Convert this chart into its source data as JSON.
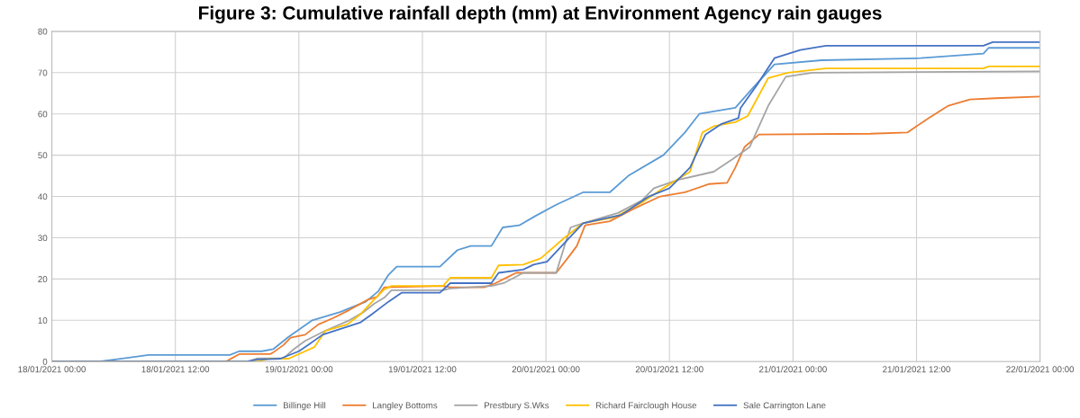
{
  "chart_data": {
    "type": "line",
    "title": "Figure 3: Cumulative rainfall depth (mm) at Environment Agency rain gauges",
    "xlim": [
      "2021-01-18T00:00",
      "2021-01-22T00:00"
    ],
    "xticks": [
      {
        "value": "2021-01-18T00:00",
        "label": "18/01/2021 00:00"
      },
      {
        "value": "2021-01-18T12:00",
        "label": "18/01/2021 12:00"
      },
      {
        "value": "2021-01-19T00:00",
        "label": "19/01/2021 00:00"
      },
      {
        "value": "2021-01-19T12:00",
        "label": "19/01/2021 12:00"
      },
      {
        "value": "2021-01-20T00:00",
        "label": "20/01/2021 00:00"
      },
      {
        "value": "2021-01-20T12:00",
        "label": "20/01/2021 12:00"
      },
      {
        "value": "2021-01-21T00:00",
        "label": "21/01/2021 00:00"
      },
      {
        "value": "2021-01-21T12:00",
        "label": "21/01/2021 12:00"
      },
      {
        "value": "2021-01-22T00:00",
        "label": "22/01/2021 00:00"
      }
    ],
    "ylim": [
      0,
      80
    ],
    "yticks": [
      0,
      10,
      20,
      30,
      40,
      50,
      60,
      70,
      80
    ],
    "grid": true,
    "legend": "bottom",
    "marker": "none",
    "line_style": "solid",
    "series": [
      {
        "name": "Billinge Hill",
        "color": "#5b9bd5",
        "x": [
          "2021-01-18T00:00",
          "2021-01-18T04:36",
          "2021-01-18T07:00",
          "2021-01-18T09:24",
          "2021-01-18T17:18",
          "2021-01-18T18:12",
          "2021-01-18T20:24",
          "2021-01-18T21:30",
          "2021-01-18T23:00",
          "2021-01-19T01:18",
          "2021-01-19T04:00",
          "2021-01-19T06:30",
          "2021-01-19T07:42",
          "2021-01-19T08:42",
          "2021-01-19T09:30",
          "2021-01-19T13:42",
          "2021-01-19T15:24",
          "2021-01-19T16:42",
          "2021-01-19T18:42",
          "2021-01-19T19:48",
          "2021-01-19T21:24",
          "2021-01-19T23:00",
          "2021-01-20T01:00",
          "2021-01-20T03:36",
          "2021-01-20T06:12",
          "2021-01-20T08:00",
          "2021-01-20T11:24",
          "2021-01-20T13:30",
          "2021-01-20T14:54",
          "2021-01-20T18:24",
          "2021-01-20T20:00",
          "2021-01-20T22:12",
          "2021-01-21T02:48",
          "2021-01-21T12:24",
          "2021-01-21T18:30",
          "2021-01-21T19:00",
          "2021-01-22T00:00"
        ],
        "values": [
          0,
          0,
          0.8,
          1.6,
          1.6,
          2.5,
          2.5,
          3,
          6,
          10,
          12,
          14.5,
          17,
          21,
          23,
          23,
          27,
          28,
          28,
          32.5,
          33,
          35.3,
          38,
          41,
          41,
          45,
          50,
          55.5,
          60,
          61.5,
          66,
          72,
          73,
          73.5,
          74.6,
          76,
          76
        ]
      },
      {
        "name": "Langley Bottoms",
        "color": "#ed7d31",
        "x": [
          "2021-01-18T00:00",
          "2021-01-18T16:54",
          "2021-01-18T18:12",
          "2021-01-18T21:12",
          "2021-01-18T21:30",
          "2021-01-18T22:30",
          "2021-01-18T23:12",
          "2021-01-19T00:36",
          "2021-01-19T01:54",
          "2021-01-19T03:18",
          "2021-01-19T04:54",
          "2021-01-19T06:42",
          "2021-01-19T07:36",
          "2021-01-19T08:18",
          "2021-01-19T14:00",
          "2021-01-19T14:42",
          "2021-01-19T18:00",
          "2021-01-19T19:06",
          "2021-01-19T20:18",
          "2021-01-19T21:06",
          "2021-01-20T01:00",
          "2021-01-20T02:24",
          "2021-01-20T03:00",
          "2021-01-20T03:48",
          "2021-01-20T06:12",
          "2021-01-20T08:30",
          "2021-01-20T11:06",
          "2021-01-20T13:30",
          "2021-01-20T15:48",
          "2021-01-20T17:36",
          "2021-01-20T18:24",
          "2021-01-20T19:18",
          "2021-01-20T20:42",
          "2021-01-21T07:30",
          "2021-01-21T11:06",
          "2021-01-21T13:12",
          "2021-01-21T15:06",
          "2021-01-21T17:12",
          "2021-01-21T19:42",
          "2021-01-22T00:00"
        ],
        "values": [
          0,
          0,
          1.8,
          1.8,
          2.2,
          4,
          5.8,
          6.5,
          9,
          10.5,
          12.5,
          15,
          15.7,
          18,
          18.3,
          18,
          18,
          19,
          20.5,
          21.5,
          21.5,
          26,
          28,
          33,
          34,
          37,
          40,
          41,
          43,
          43.3,
          47,
          52,
          55,
          55.2,
          55.5,
          59,
          62,
          63.5,
          63.8,
          64.2
        ]
      },
      {
        "name": "Prestbury S.Wks",
        "color": "#a5a5a5",
        "x": [
          "2021-01-18T00:00",
          "2021-01-18T19:00",
          "2021-01-18T20:00",
          "2021-01-18T22:30",
          "2021-01-18T23:30",
          "2021-01-19T00:36",
          "2021-01-19T02:36",
          "2021-01-19T04:54",
          "2021-01-19T06:18",
          "2021-01-19T07:18",
          "2021-01-19T08:18",
          "2021-01-19T09:00",
          "2021-01-19T14:00",
          "2021-01-19T14:42",
          "2021-01-19T18:42",
          "2021-01-19T19:54",
          "2021-01-19T21:48",
          "2021-01-20T01:00",
          "2021-01-20T01:48",
          "2021-01-20T02:24",
          "2021-01-20T03:36",
          "2021-01-20T07:00",
          "2021-01-20T09:18",
          "2021-01-20T10:30",
          "2021-01-20T12:48",
          "2021-01-20T16:18",
          "2021-01-20T18:06",
          "2021-01-20T19:48",
          "2021-01-20T21:36",
          "2021-01-20T23:18",
          "2021-01-21T01:54",
          "2021-01-22T00:00"
        ],
        "values": [
          0,
          0,
          0.8,
          0.8,
          3,
          5,
          7.5,
          10,
          12,
          14,
          15.5,
          17.3,
          17.3,
          17.7,
          18.3,
          19,
          21.5,
          21.5,
          28,
          32.5,
          33.5,
          36,
          39,
          42,
          44,
          46,
          49,
          52,
          62,
          69,
          70,
          70.3
        ]
      },
      {
        "name": "Richard Fairclough House",
        "color": "#ffc000",
        "x": [
          "2021-01-18T00:00",
          "2021-01-18T20:00",
          "2021-01-18T21:00",
          "2021-01-18T23:00",
          "2021-01-19T01:30",
          "2021-01-19T02:36",
          "2021-01-19T04:42",
          "2021-01-19T06:00",
          "2021-01-19T07:18",
          "2021-01-19T08:18",
          "2021-01-19T09:00",
          "2021-01-19T14:00",
          "2021-01-19T14:42",
          "2021-01-19T18:42",
          "2021-01-19T19:24",
          "2021-01-19T21:48",
          "2021-01-19T23:30",
          "2021-01-20T01:48",
          "2021-01-20T03:36",
          "2021-01-20T06:42",
          "2021-01-20T09:18",
          "2021-01-20T11:24",
          "2021-01-20T14:00",
          "2021-01-20T15:12",
          "2021-01-20T16:18",
          "2021-01-20T18:24",
          "2021-01-20T19:36",
          "2021-01-20T21:36",
          "2021-01-20T23:30",
          "2021-01-21T03:12",
          "2021-01-21T18:30",
          "2021-01-21T19:00",
          "2021-01-22T00:00"
        ],
        "values": [
          0,
          0,
          0.7,
          0.7,
          3.5,
          7.5,
          9,
          11.5,
          15,
          17.5,
          18.3,
          18.3,
          20.3,
          20.3,
          23.3,
          23.5,
          25,
          30,
          33.5,
          35,
          38.5,
          42,
          46,
          55.5,
          57,
          58,
          59.5,
          68.7,
          70,
          71,
          71,
          71.5,
          71.5
        ]
      },
      {
        "name": "Sale Carrington Lane",
        "color": "#4472c4",
        "x": [
          "2021-01-18T00:00",
          "2021-01-18T19:00",
          "2021-01-18T20:00",
          "2021-01-18T22:12",
          "2021-01-19T00:00",
          "2021-01-19T00:54",
          "2021-01-19T02:18",
          "2021-01-19T06:00",
          "2021-01-19T07:06",
          "2021-01-19T08:42",
          "2021-01-19T10:00",
          "2021-01-19T13:42",
          "2021-01-19T14:42",
          "2021-01-19T18:42",
          "2021-01-19T19:24",
          "2021-01-19T21:48",
          "2021-01-19T22:48",
          "2021-01-20T00:06",
          "2021-01-20T03:36",
          "2021-01-20T07:18",
          "2021-01-20T10:00",
          "2021-01-20T12:00",
          "2021-01-20T14:00",
          "2021-01-20T15:30",
          "2021-01-20T17:00",
          "2021-01-20T18:42",
          "2021-01-20T18:54",
          "2021-01-20T20:30",
          "2021-01-20T22:12",
          "2021-01-21T00:42",
          "2021-01-21T03:12",
          "2021-01-21T18:30",
          "2021-01-21T19:24",
          "2021-01-22T00:00"
        ],
        "values": [
          0,
          0,
          0.5,
          0.7,
          2.5,
          4,
          6.5,
          9.5,
          11.5,
          14.5,
          16.7,
          16.7,
          19,
          19,
          21.5,
          22.3,
          23.5,
          24.2,
          33.5,
          35.5,
          40,
          42,
          47,
          55,
          57.5,
          59,
          61.4,
          67,
          73.5,
          75.5,
          76.5,
          76.5,
          77.4,
          77.4
        ]
      }
    ]
  }
}
